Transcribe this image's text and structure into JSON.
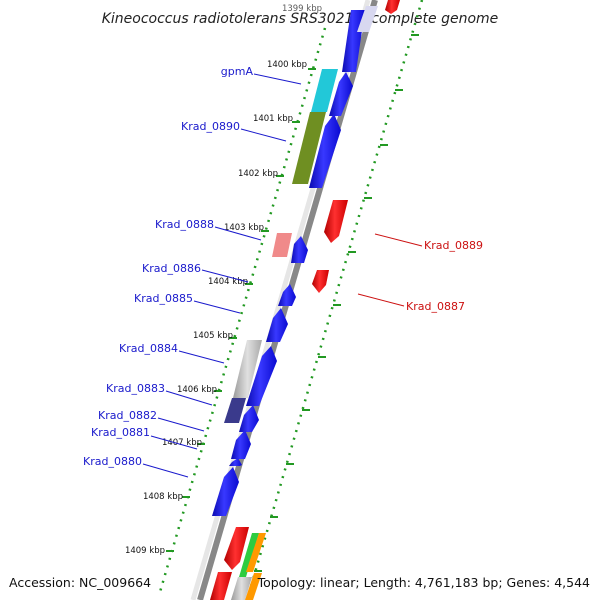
{
  "title": "Kineococcus radiotolerans SRS30216, complete genome",
  "footer": {
    "accession": "Accession: NC_009664",
    "summary": "Topology: linear; Length: 4,761,183 bp; Genes: 4,544"
  },
  "kbp_labels": [
    "1399 kbp",
    "1400 kbp",
    "1401 kbp",
    "1402 kbp",
    "1403 kbp",
    "1404 kbp",
    "1405 kbp",
    "1406 kbp",
    "1407 kbp",
    "1408 kbp",
    "1409 kbp"
  ],
  "left_genes": [
    {
      "label": "gpmA",
      "color": "#1a1acc"
    },
    {
      "label": "Krad_0890",
      "color": "#1a1acc"
    },
    {
      "label": "Krad_0888",
      "color": "#1a1acc"
    },
    {
      "label": "Krad_0886",
      "color": "#1a1acc"
    },
    {
      "label": "Krad_0885",
      "color": "#1a1acc"
    },
    {
      "label": "Krad_0884",
      "color": "#1a1acc"
    },
    {
      "label": "Krad_0883",
      "color": "#1a1acc"
    },
    {
      "label": "Krad_0882",
      "color": "#1a1acc"
    },
    {
      "label": "Krad_0881",
      "color": "#1a1acc"
    },
    {
      "label": "Krad_0880",
      "color": "#1a1acc"
    }
  ],
  "right_genes": [
    {
      "label": "Krad_0889",
      "color": "#cc1111"
    },
    {
      "label": "Krad_0887",
      "color": "#cc1111"
    }
  ],
  "colors": {
    "forward_strand": "#1515e8",
    "reverse_strand": "#e51515",
    "highlight_cyan": "#22c8d8",
    "highlight_olive": "#6f8f22",
    "pseudo_pink": "#f08a8a",
    "grey": "#b8b8b8",
    "indigo": "#3a3a8c",
    "green": "#2ecc40",
    "orange": "#ff9900",
    "dotted_axis": "#229922",
    "backbone": "#888888"
  }
}
